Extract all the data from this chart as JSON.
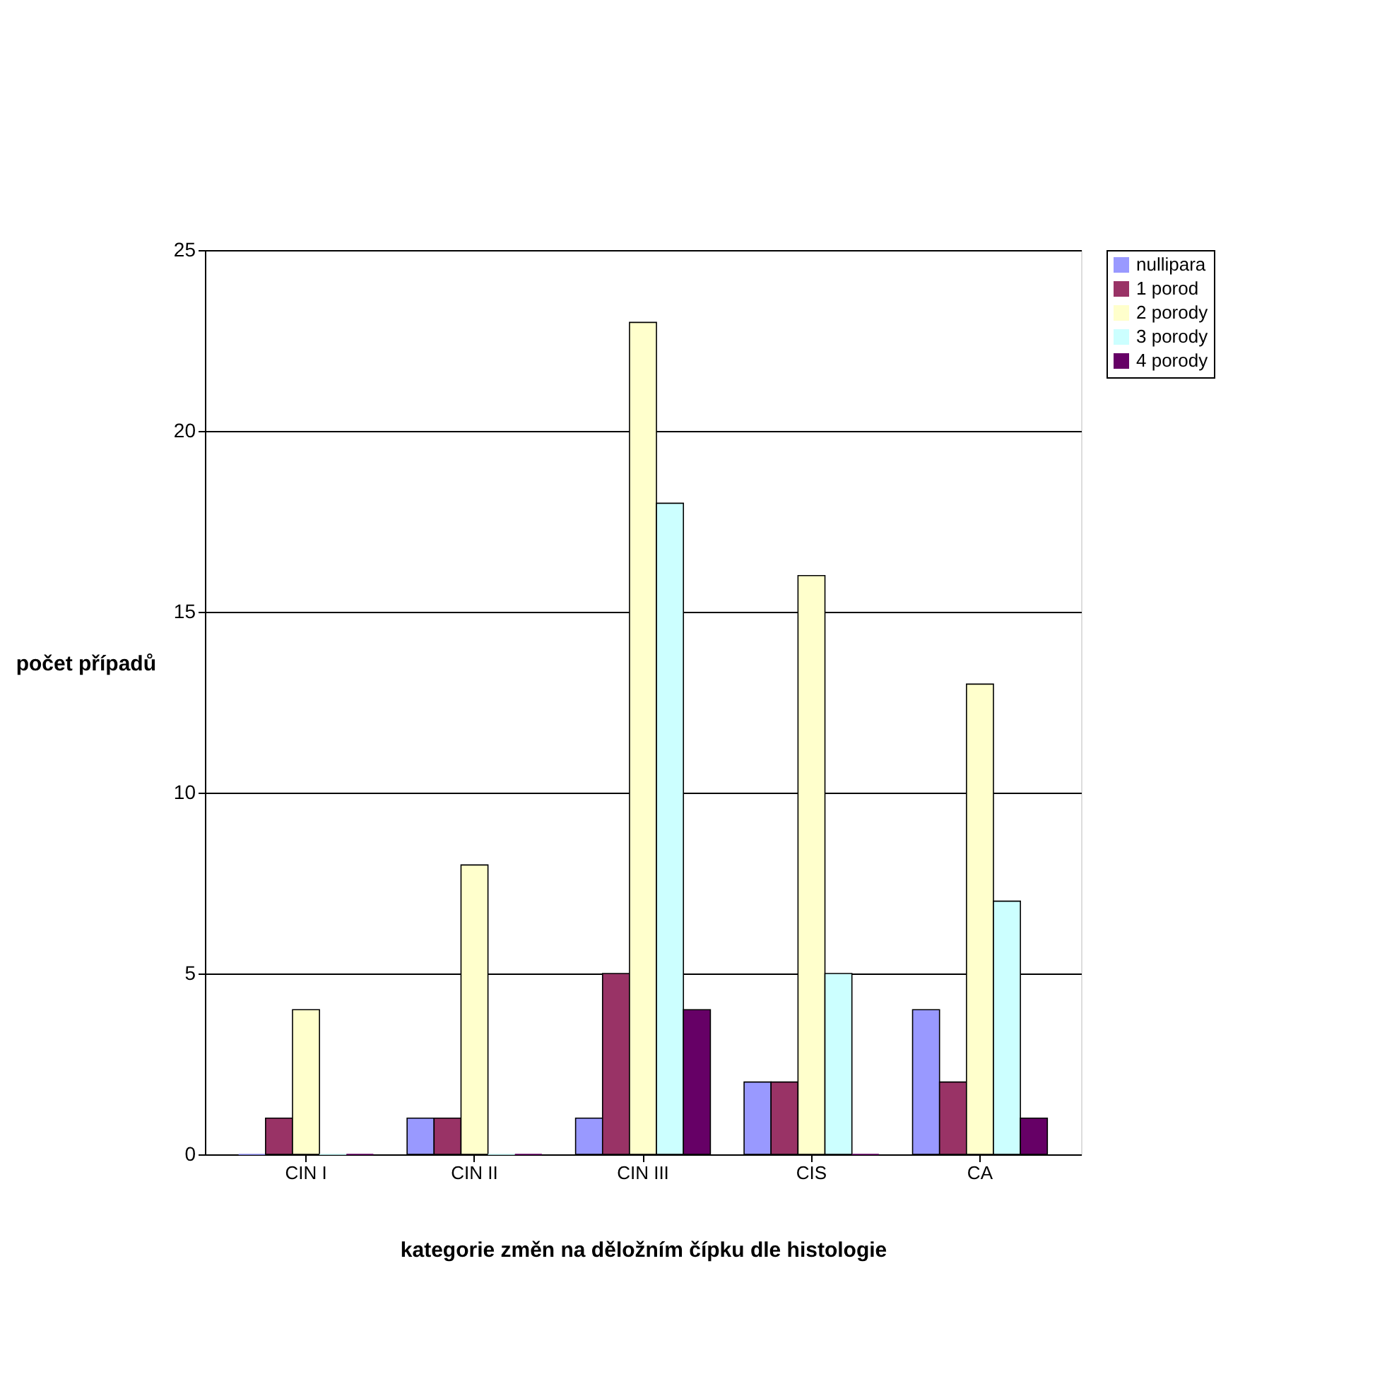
{
  "chart_data": {
    "type": "bar",
    "xlabel": "kategorie změn na děložním čípku dle histologie",
    "ylabel": "počet případů",
    "categories": [
      "CIN I",
      "CIN II",
      "CIN III",
      "CIS",
      "CA"
    ],
    "series": [
      {
        "name": "nullipara",
        "color": "#9999ff",
        "values": [
          0,
          1,
          1,
          2,
          4
        ]
      },
      {
        "name": "1 porod",
        "color": "#993366",
        "values": [
          1,
          1,
          5,
          2,
          2
        ]
      },
      {
        "name": "2 porody",
        "color": "#ffffcc",
        "values": [
          4,
          8,
          23,
          16,
          13
        ]
      },
      {
        "name": "3 porody",
        "color": "#ccffff",
        "values": [
          0,
          0,
          18,
          5,
          7
        ]
      },
      {
        "name": "4 porody",
        "color": "#660066",
        "values": [
          0,
          0,
          4,
          0,
          1
        ]
      }
    ],
    "ylim": [
      0,
      25
    ],
    "yticks": [
      0,
      5,
      10,
      15,
      20,
      25
    ],
    "grid": "y",
    "legend": "right"
  }
}
